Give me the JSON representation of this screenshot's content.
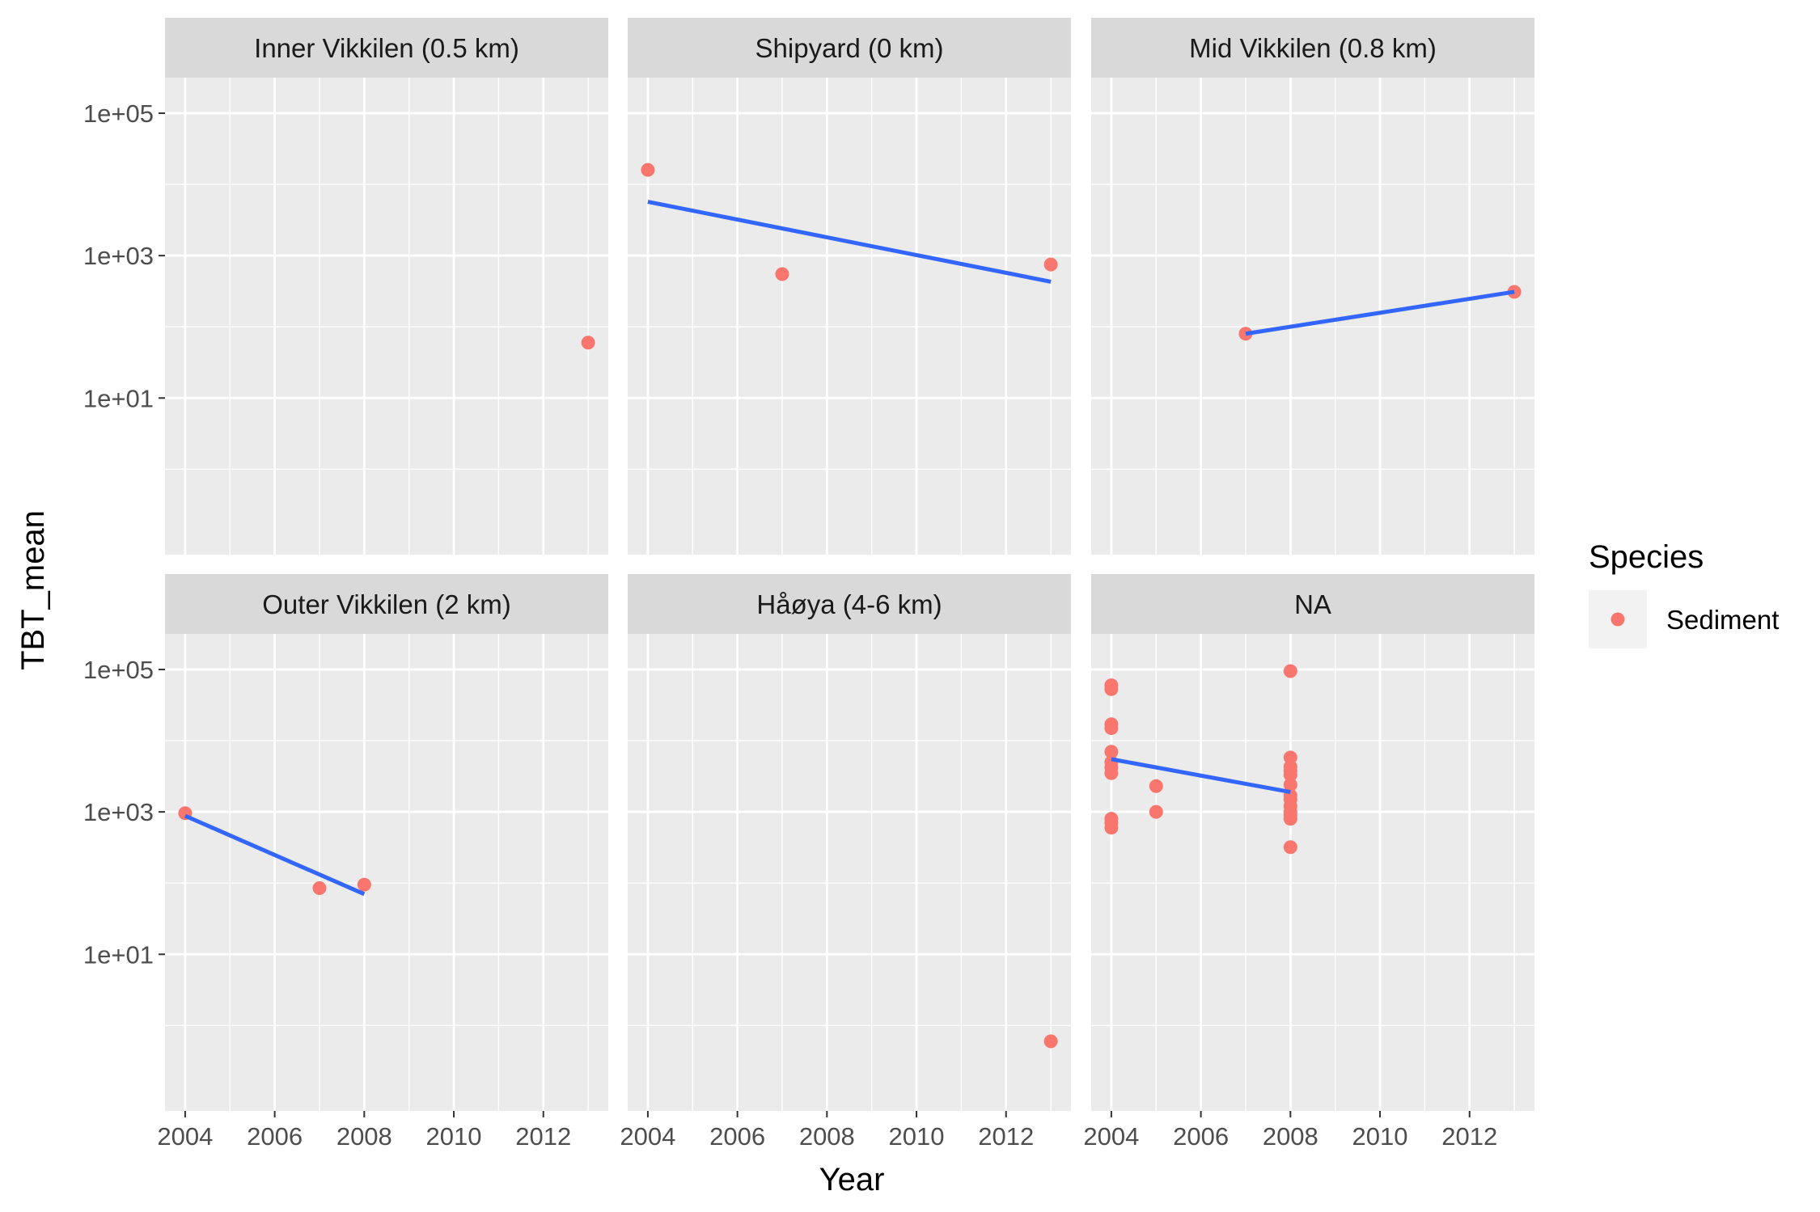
{
  "chart_data": {
    "type": "scatter",
    "xlabel": "Year",
    "ylabel": "TBT_mean",
    "y_scale": "log10",
    "xlim": [
      2003.55,
      2013.45
    ],
    "ylim_log10": [
      -1.2,
      5.5
    ],
    "x_ticks": [
      2004,
      2006,
      2008,
      2010,
      2012
    ],
    "x_minor": [
      2005,
      2007,
      2009,
      2011,
      2013
    ],
    "y_ticks": [
      {
        "log": 1,
        "label": "1e+01"
      },
      {
        "log": 3,
        "label": "1e+03"
      },
      {
        "log": 5,
        "label": "1e+05"
      }
    ],
    "y_minor_log": [
      0,
      2,
      4
    ],
    "legend": {
      "title": "Species",
      "entries": [
        {
          "label": "Sediment"
        }
      ],
      "position": "right"
    },
    "colors": {
      "point": "#F8766D",
      "line": "#3366FF",
      "panel": "#EBEBEB",
      "grid": "#FFFFFF",
      "strip": "#D9D9D9"
    },
    "panels": [
      {
        "title": "Inner Vikkilen (0.5 km)",
        "points": [
          [
            2013,
            60
          ]
        ],
        "trend": null
      },
      {
        "title": "Shipyard (0 km)",
        "points": [
          [
            2004,
            16000
          ],
          [
            2007,
            550
          ],
          [
            2013,
            750
          ]
        ],
        "trend": [
          [
            2004,
            5700
          ],
          [
            2013,
            430
          ]
        ]
      },
      {
        "title": "Mid Vikkilen (0.8 km)",
        "points": [
          [
            2007,
            80
          ],
          [
            2013,
            310
          ]
        ],
        "trend": [
          [
            2007,
            80
          ],
          [
            2013,
            310
          ]
        ]
      },
      {
        "title": "Outer Vikkilen (2 km)",
        "points": [
          [
            2004,
            960
          ],
          [
            2007,
            85
          ],
          [
            2008,
            95
          ]
        ],
        "trend": [
          [
            2004,
            880
          ],
          [
            2008,
            70
          ]
        ]
      },
      {
        "title": "Håøya (4-6 km)",
        "points": [
          [
            2013,
            0.6
          ]
        ],
        "trend": null
      },
      {
        "title": "NA",
        "points": [
          [
            2004,
            60000
          ],
          [
            2004,
            53000
          ],
          [
            2004,
            17000
          ],
          [
            2004,
            15000
          ],
          [
            2004,
            7000
          ],
          [
            2004,
            5000
          ],
          [
            2004,
            4200
          ],
          [
            2004,
            3500
          ],
          [
            2004,
            800
          ],
          [
            2004,
            700
          ],
          [
            2004,
            600
          ],
          [
            2005,
            2300
          ],
          [
            2005,
            1000
          ],
          [
            2008,
            95000
          ],
          [
            2008,
            5800
          ],
          [
            2008,
            4300
          ],
          [
            2008,
            3800
          ],
          [
            2008,
            3300
          ],
          [
            2008,
            2400
          ],
          [
            2008,
            1700
          ],
          [
            2008,
            1500
          ],
          [
            2008,
            1200
          ],
          [
            2008,
            1000
          ],
          [
            2008,
            900
          ],
          [
            2008,
            800
          ],
          [
            2008,
            320
          ]
        ],
        "trend": [
          [
            2004,
            5500
          ],
          [
            2008,
            1900
          ]
        ]
      }
    ]
  }
}
